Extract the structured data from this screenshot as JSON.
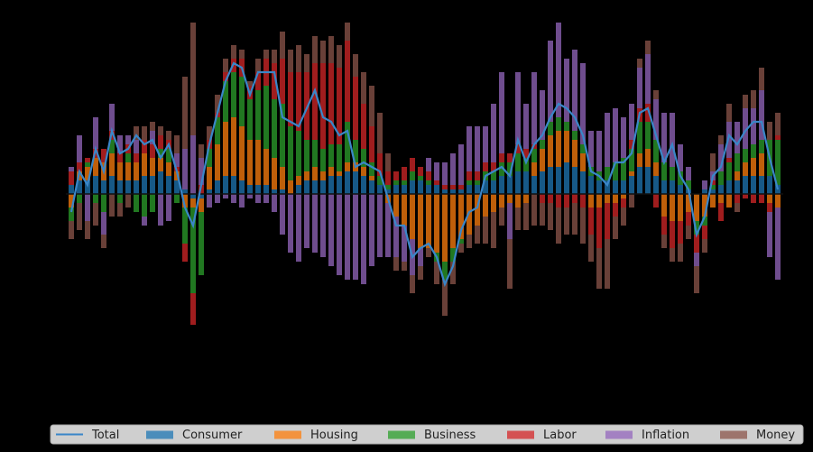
{
  "chart_data": {
    "type": "bar",
    "stacked": true,
    "bar_opacity": 0.75,
    "categories": [
      null,
      null,
      null,
      null,
      null,
      null,
      null,
      null,
      null,
      null,
      null,
      null,
      null,
      null,
      null,
      null,
      null,
      null,
      null,
      null,
      null,
      null,
      null,
      null,
      null,
      null,
      null,
      null,
      null,
      null,
      null,
      null,
      null,
      null,
      null,
      null,
      null,
      null,
      null,
      null,
      null,
      null,
      null,
      null,
      null,
      null,
      null,
      null,
      null,
      null,
      null,
      null,
      null,
      null,
      null,
      null,
      null,
      null,
      null,
      null,
      null,
      null,
      null,
      null,
      null,
      null,
      null,
      null,
      null,
      null,
      null,
      null,
      null,
      null,
      null,
      null,
      null,
      null,
      null,
      null,
      null,
      null,
      null,
      null,
      null,
      null,
      null,
      null
    ],
    "ylim": [
      -4.9,
      4.1
    ],
    "series": [
      {
        "name": "Total",
        "type": "line",
        "color": "#3a86c8",
        "values": [
          -0.4,
          0.5,
          0.2,
          1.0,
          0.5,
          1.4,
          0.9,
          1.0,
          1.3,
          1.1,
          1.2,
          0.8,
          1.1,
          0.5,
          -0.3,
          -0.7,
          0.2,
          1.1,
          1.8,
          2.5,
          2.9,
          2.8,
          2.2,
          2.7,
          2.7,
          2.7,
          1.7,
          1.6,
          1.5,
          1.9,
          2.3,
          1.7,
          1.6,
          1.3,
          1.4,
          0.6,
          0.7,
          0.6,
          0.5,
          -0.1,
          -0.7,
          -0.7,
          -1.4,
          -1.2,
          -1.1,
          -1.4,
          -2.0,
          -1.6,
          -0.8,
          -0.4,
          -0.3,
          0.4,
          0.5,
          0.6,
          0.4,
          1.2,
          0.7,
          1.1,
          1.3,
          1.7,
          2.0,
          1.9,
          1.7,
          1.3,
          0.5,
          0.4,
          0.2,
          0.7,
          0.7,
          0.9,
          1.8,
          1.9,
          1.3,
          0.7,
          1.1,
          0.4,
          0.1,
          -0.9,
          -0.5,
          0.4,
          0.6,
          1.3,
          1.1,
          1.4,
          1.6,
          1.6,
          0.8,
          0.1
        ]
      },
      {
        "name": "Consumer",
        "color": "#1f77b4",
        "values": [
          0.2,
          0.3,
          0.3,
          0.4,
          0.3,
          0.4,
          0.3,
          0.3,
          0.3,
          0.4,
          0.4,
          0.5,
          0.4,
          0.3,
          0.1,
          -0.1,
          -0.1,
          0.1,
          0.3,
          0.4,
          0.4,
          0.3,
          0.2,
          0.2,
          0.2,
          0.1,
          0.1,
          0.0,
          0.2,
          0.3,
          0.3,
          0.3,
          0.4,
          0.4,
          0.5,
          0.5,
          0.4,
          0.3,
          0.2,
          0.1,
          0.2,
          0.2,
          0.3,
          0.3,
          0.2,
          0.2,
          0.1,
          0.1,
          0.1,
          0.2,
          0.2,
          0.3,
          0.3,
          0.4,
          0.4,
          0.5,
          0.5,
          0.4,
          0.5,
          0.6,
          0.6,
          0.7,
          0.6,
          0.5,
          0.4,
          0.3,
          0.3,
          0.3,
          0.3,
          0.4,
          0.6,
          0.6,
          0.4,
          0.3,
          0.3,
          0.2,
          0.1,
          0.0,
          0.1,
          0.1,
          0.2,
          0.3,
          0.3,
          0.4,
          0.4,
          0.4,
          0.4,
          0.2
        ]
      },
      {
        "name": "Housing",
        "color": "#ff7f0e",
        "values": [
          -0.3,
          0.2,
          0.3,
          0.4,
          0.4,
          0.5,
          0.4,
          0.4,
          0.4,
          0.5,
          0.4,
          0.3,
          0.3,
          0.2,
          -0.3,
          -0.2,
          -0.3,
          0.5,
          0.8,
          1.2,
          1.3,
          1.2,
          1.0,
          1.0,
          0.8,
          0.7,
          0.5,
          0.3,
          0.2,
          0.2,
          0.3,
          0.2,
          0.2,
          0.1,
          0.2,
          0.2,
          0.2,
          0.1,
          0.0,
          -0.2,
          -0.5,
          -0.7,
          -1.0,
          -1.2,
          -1.2,
          -1.3,
          -1.5,
          -1.2,
          -1.0,
          -0.9,
          -0.7,
          -0.5,
          -0.4,
          -0.3,
          -0.2,
          -0.3,
          -0.2,
          0.3,
          0.5,
          0.7,
          0.8,
          0.7,
          0.6,
          0.4,
          -0.3,
          -0.3,
          -0.2,
          -0.2,
          -0.1,
          0.1,
          0.3,
          0.4,
          0.3,
          -0.5,
          -0.6,
          -0.6,
          -0.4,
          -0.6,
          -0.5,
          -0.3,
          -0.2,
          -0.3,
          0.2,
          0.3,
          0.4,
          0.5,
          -0.2,
          -0.3
        ]
      },
      {
        "name": "Business",
        "color": "#2ca02c",
        "values": [
          -0.3,
          -0.2,
          0.1,
          -0.2,
          -0.4,
          0.3,
          -0.2,
          0.2,
          -0.4,
          -0.5,
          -0.4,
          0.2,
          0.3,
          -0.2,
          -0.8,
          -1.9,
          -1.4,
          0.4,
          0.6,
          0.9,
          1.0,
          1.1,
          0.9,
          1.1,
          1.4,
          1.3,
          1.4,
          1.2,
          1.0,
          0.7,
          0.6,
          0.5,
          0.5,
          0.6,
          0.9,
          0.5,
          0.4,
          0.3,
          0.2,
          0.1,
          0.1,
          0.1,
          0.2,
          0.1,
          0.1,
          -0.2,
          -0.4,
          -0.3,
          -0.1,
          0.1,
          0.1,
          0.2,
          0.2,
          0.3,
          0.3,
          0.4,
          0.3,
          0.3,
          0.2,
          0.3,
          0.3,
          0.2,
          0.2,
          0.2,
          0.2,
          0.2,
          0.3,
          0.4,
          0.5,
          0.5,
          0.7,
          0.6,
          0.5,
          0.4,
          0.3,
          0.3,
          0.2,
          -0.3,
          -0.2,
          0.1,
          0.3,
          0.4,
          0.4,
          0.3,
          0.3,
          0.3,
          0.8,
          1.0
        ]
      },
      {
        "name": "Labor",
        "color": "#d62728",
        "values": [
          0.3,
          0.2,
          0.1,
          0.2,
          0.3,
          0.2,
          0.2,
          0.2,
          0.2,
          0.3,
          0.3,
          0.3,
          0.2,
          0.1,
          -0.4,
          -0.7,
          0.2,
          0.2,
          0.1,
          0.2,
          0.3,
          0.4,
          0.3,
          0.4,
          0.6,
          0.8,
          1.0,
          1.2,
          1.3,
          1.5,
          1.7,
          1.9,
          1.8,
          1.7,
          1.8,
          1.4,
          1.0,
          0.8,
          0.5,
          0.3,
          0.2,
          0.3,
          0.3,
          0.2,
          0.2,
          0.1,
          0.1,
          0.1,
          0.1,
          0.2,
          0.2,
          0.2,
          0.2,
          0.2,
          0.2,
          0.2,
          0.2,
          0.1,
          -0.2,
          -0.2,
          -0.3,
          -0.3,
          -0.2,
          -0.3,
          -0.6,
          -0.9,
          -0.8,
          -0.3,
          -0.2,
          0.2,
          0.3,
          0.4,
          -0.3,
          -0.4,
          -0.6,
          -0.5,
          -0.3,
          -0.4,
          -0.3,
          0.1,
          -0.4,
          0.1,
          -0.2,
          -0.1,
          -0.2,
          -0.2,
          -0.2,
          0.1
        ]
      },
      {
        "name": "Inflation",
        "color": "#9467bd",
        "values": [
          0.1,
          0.6,
          -0.6,
          0.7,
          -0.5,
          0.6,
          0.4,
          0.2,
          0.3,
          -0.2,
          0.3,
          -0.7,
          -0.6,
          0.3,
          0.9,
          1.3,
          0.6,
          -0.3,
          -0.2,
          -0.1,
          -0.2,
          -0.3,
          -0.1,
          -0.2,
          -0.2,
          -0.4,
          -0.9,
          -1.3,
          -1.5,
          -1.2,
          -1.3,
          -1.4,
          -1.6,
          -1.8,
          -1.9,
          -1.9,
          -2.0,
          -1.6,
          -1.4,
          -1.2,
          -0.9,
          -0.8,
          -0.8,
          -0.4,
          0.3,
          0.4,
          0.5,
          0.7,
          0.9,
          1.0,
          1.0,
          0.8,
          1.3,
          1.8,
          -0.8,
          1.6,
          1.0,
          1.6,
          1.1,
          1.8,
          2.1,
          1.4,
          1.8,
          1.8,
          0.8,
          0.9,
          1.2,
          1.2,
          0.9,
          0.8,
          0.9,
          1.1,
          0.9,
          1.1,
          1.2,
          0.6,
          0.3,
          -0.3,
          0.2,
          0.2,
          0.6,
          0.8,
          0.7,
          0.9,
          0.8,
          1.1,
          -1.0,
          -1.6
        ]
      },
      {
        "name": "Money",
        "color": "#8c564b",
        "values": [
          -0.4,
          -0.6,
          -0.4,
          -0.5,
          -0.3,
          -0.5,
          -0.3,
          -0.3,
          0.3,
          0.3,
          0.2,
          0.2,
          0.2,
          0.4,
          1.6,
          2.5,
          0.3,
          0.3,
          0.4,
          0.3,
          0.3,
          0.2,
          0.1,
          0.3,
          0.2,
          0.3,
          0.6,
          0.5,
          0.6,
          0.4,
          0.6,
          0.5,
          0.6,
          0.5,
          0.4,
          0.5,
          0.7,
          0.9,
          0.9,
          0.4,
          -0.3,
          -0.2,
          -0.4,
          -0.3,
          -0.2,
          -0.5,
          -0.8,
          -0.5,
          -0.2,
          -0.3,
          -0.4,
          -0.6,
          -0.8,
          -0.4,
          -1.1,
          -0.5,
          -0.6,
          -0.7,
          -0.5,
          -0.6,
          -0.8,
          -0.6,
          -0.7,
          -0.8,
          -0.6,
          -0.9,
          -1.1,
          -0.5,
          -0.4,
          -0.3,
          0.2,
          0.3,
          0.2,
          -0.3,
          -0.3,
          -0.4,
          -0.3,
          -0.6,
          -0.3,
          0.4,
          0.2,
          0.4,
          -0.2,
          0.3,
          0.4,
          0.5,
          0.4,
          0.5
        ]
      }
    ]
  }
}
